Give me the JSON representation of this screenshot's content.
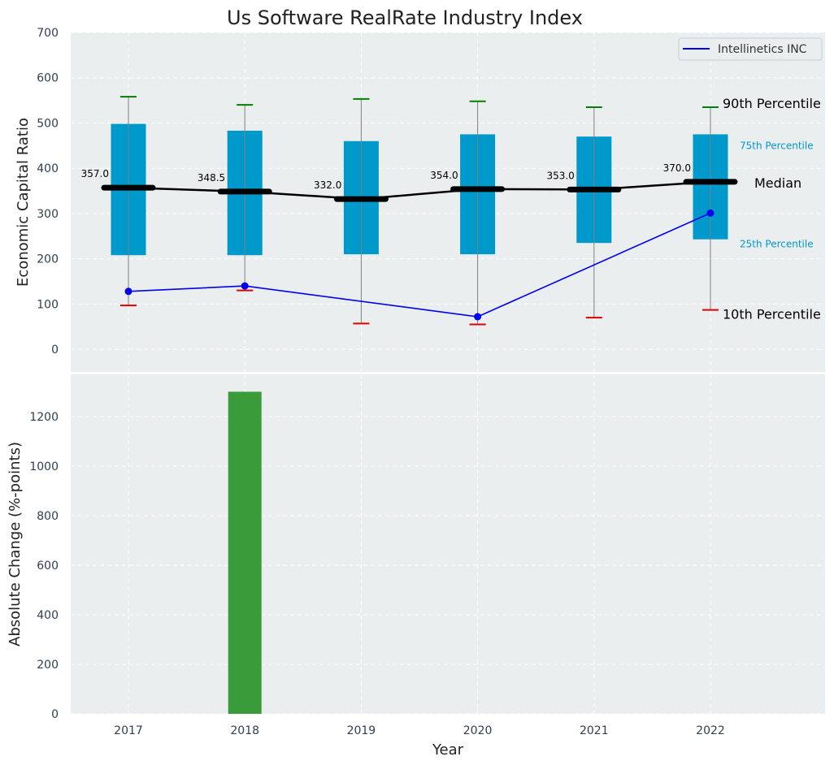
{
  "chart_data": [
    {
      "type": "box",
      "title": "Us Software RealRate Industry Index",
      "xlabel": "",
      "ylabel": "Economic Capital Ratio",
      "ylim": [
        -50,
        700
      ],
      "yticks": [
        0,
        100,
        200,
        300,
        400,
        500,
        600,
        700
      ],
      "categories": [
        "2017",
        "2018",
        "2019",
        "2020",
        "2021",
        "2022"
      ],
      "p10": [
        97,
        130,
        57,
        55,
        70,
        87
      ],
      "p25": [
        208,
        208,
        210,
        210,
        235,
        243
      ],
      "median": [
        357.0,
        348.5,
        332.0,
        354.0,
        353.0,
        370.0
      ],
      "p75": [
        498,
        483,
        460,
        475,
        470,
        475
      ],
      "p90": [
        558,
        540,
        553,
        548,
        535,
        535
      ],
      "median_labels": [
        "357.0",
        "348.5",
        "332.0",
        "354.0",
        "353.0",
        "370.0"
      ],
      "company_series": {
        "name": "Intellinetics INC",
        "color": "#0000ee",
        "categories": [
          "2017",
          "2018",
          "2020",
          "2022"
        ],
        "values": [
          128,
          140,
          72,
          301
        ]
      },
      "annotations": {
        "p90": "90th Percentile",
        "p75": "75th Percentile",
        "median": "Median",
        "p25": "25th Percentile",
        "p10": "10th Percentile"
      },
      "legend": "top-right"
    },
    {
      "type": "bar",
      "title": "",
      "xlabel": "Year",
      "ylabel": "Absolute Change (%-points)",
      "ylim": [
        0,
        1370
      ],
      "yticks": [
        0,
        200,
        400,
        600,
        800,
        1000,
        1200
      ],
      "categories": [
        "2017",
        "2018",
        "2019",
        "2020",
        "2021",
        "2022"
      ],
      "values": [
        0,
        1300,
        0,
        0,
        0,
        0
      ],
      "bar_color": "#3a9b3a"
    }
  ],
  "colors": {
    "plot_bg": "#eaeeef",
    "box": "#0099cc",
    "median_line": "#000000",
    "whisker": "#808080",
    "p90_cap": "#008000",
    "p10_cap": "#dd0000"
  }
}
